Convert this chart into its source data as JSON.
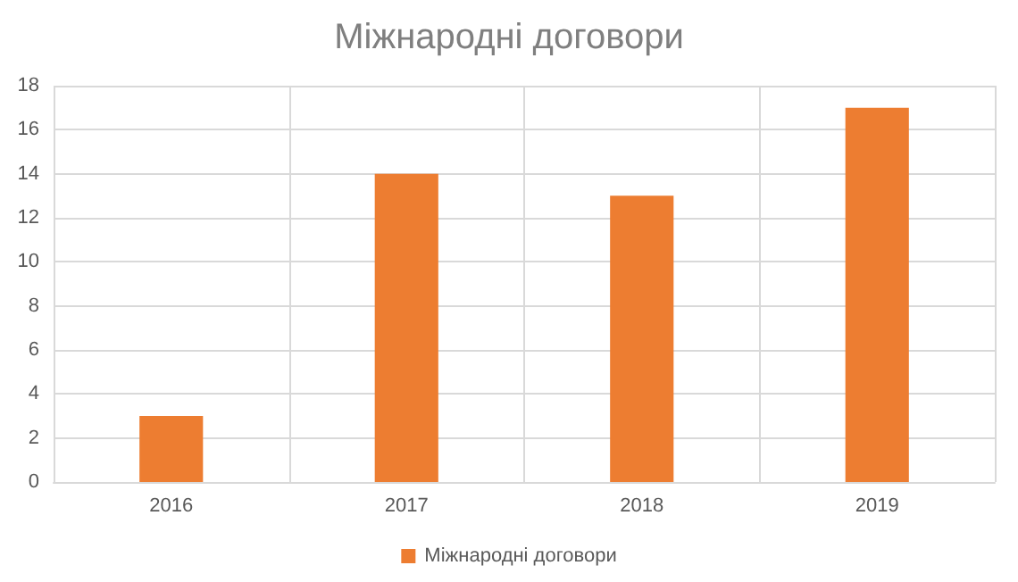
{
  "chart_data": {
    "type": "bar",
    "title": "Міжнародні договори",
    "categories": [
      "2016",
      "2017",
      "2018",
      "2019"
    ],
    "series": [
      {
        "name": "Міжнародні договори",
        "color": "#ed7d31",
        "values": [
          3,
          14,
          13,
          17
        ]
      }
    ],
    "ylim": [
      0,
      18
    ],
    "yticks": [
      0,
      2,
      4,
      6,
      8,
      10,
      12,
      14,
      16,
      18
    ],
    "grid": true,
    "legend": "bottom"
  }
}
